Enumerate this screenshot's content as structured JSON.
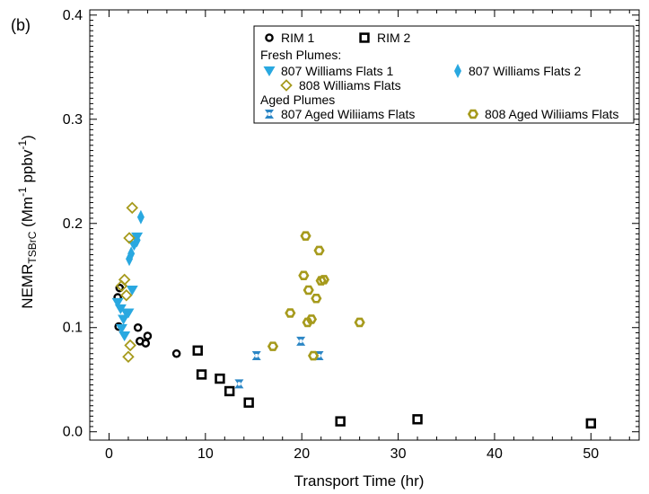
{
  "chart_data": {
    "type": "scatter",
    "panel_label": "(b)",
    "xlabel": "Transport Time (hr)",
    "ylabel": {
      "base": "NEMR",
      "sub": "TSBrC",
      "rest": " (Mm",
      "sup1": "-1",
      "mid": " ppbv",
      "sup2": "-1",
      "end": ")"
    },
    "xlim": [
      -2,
      55
    ],
    "ylim": [
      -0.008,
      0.405
    ],
    "x_ticks": [
      0,
      10,
      20,
      30,
      40,
      50
    ],
    "y_ticks": [
      0.0,
      0.1,
      0.2,
      0.3,
      0.4
    ],
    "y_tick_labels": [
      "0.0",
      "0.1",
      "0.2",
      "0.3",
      "0.4"
    ],
    "grid": false,
    "legend": {
      "position": "top-right",
      "group_fresh": "Fresh Plumes:",
      "group_aged": "Aged Plumes"
    },
    "colors": {
      "rim": "#000000",
      "blue": "#29a8e0",
      "olive": "#a69a1c",
      "steel": "#2b86c5"
    },
    "series": [
      {
        "name": "RIM 1",
        "marker": "ring",
        "color": "#000000",
        "points": [
          [
            0.9,
            0.129
          ],
          [
            1.1,
            0.138
          ],
          [
            1.0,
            0.101
          ],
          [
            3.0,
            0.1
          ],
          [
            3.2,
            0.087
          ],
          [
            3.8,
            0.085
          ],
          [
            4.0,
            0.092
          ],
          [
            7.0,
            0.075
          ]
        ]
      },
      {
        "name": "RIM 2",
        "marker": "square-open",
        "color": "#000000",
        "points": [
          [
            9.2,
            0.078
          ],
          [
            9.6,
            0.055
          ],
          [
            11.5,
            0.051
          ],
          [
            12.5,
            0.039
          ],
          [
            14.5,
            0.028
          ],
          [
            24.0,
            0.01
          ],
          [
            32.0,
            0.012
          ],
          [
            50.0,
            0.008
          ]
        ]
      },
      {
        "name": "807 Williams Flats 1",
        "marker": "triangle-down",
        "color": "#29a8e0",
        "points": [
          [
            0.9,
            0.124
          ],
          [
            1.2,
            0.118
          ],
          [
            1.5,
            0.108
          ],
          [
            1.3,
            0.099
          ],
          [
            1.8,
            0.114
          ],
          [
            2.0,
            0.114
          ],
          [
            2.4,
            0.136
          ],
          [
            2.6,
            0.179
          ],
          [
            2.9,
            0.187
          ],
          [
            1.6,
            0.092
          ]
        ]
      },
      {
        "name": "807 Williams Flats 2",
        "marker": "diamond-tall",
        "color": "#29a8e0",
        "points": [
          [
            2.1,
            0.166
          ],
          [
            2.3,
            0.171
          ],
          [
            2.9,
            0.184
          ],
          [
            3.3,
            0.206
          ]
        ]
      },
      {
        "name": "808 Williams Flats",
        "marker": "diamond-open",
        "color": "#a69a1c",
        "points": [
          [
            2.4,
            0.215
          ],
          [
            2.1,
            0.186
          ],
          [
            1.6,
            0.146
          ],
          [
            1.3,
            0.14
          ],
          [
            1.8,
            0.131
          ],
          [
            2.2,
            0.083
          ],
          [
            2.0,
            0.072
          ]
        ]
      },
      {
        "name": "807 Aged Wiliiams Flats",
        "marker": "bowtie",
        "color": "#2b86c5",
        "points": [
          [
            13.5,
            0.046
          ],
          [
            15.3,
            0.073
          ],
          [
            19.9,
            0.087
          ],
          [
            21.8,
            0.073
          ]
        ]
      },
      {
        "name": "808 Aged Wiliiams Flats",
        "marker": "hexagon",
        "color": "#a69a1c",
        "points": [
          [
            17.0,
            0.082
          ],
          [
            18.8,
            0.114
          ],
          [
            20.2,
            0.15
          ],
          [
            20.4,
            0.188
          ],
          [
            20.6,
            0.105
          ],
          [
            20.7,
            0.136
          ],
          [
            21.0,
            0.108
          ],
          [
            21.2,
            0.073
          ],
          [
            21.5,
            0.128
          ],
          [
            21.8,
            0.174
          ],
          [
            22.0,
            0.145
          ],
          [
            22.3,
            0.146
          ],
          [
            26.0,
            0.105
          ]
        ]
      }
    ]
  }
}
